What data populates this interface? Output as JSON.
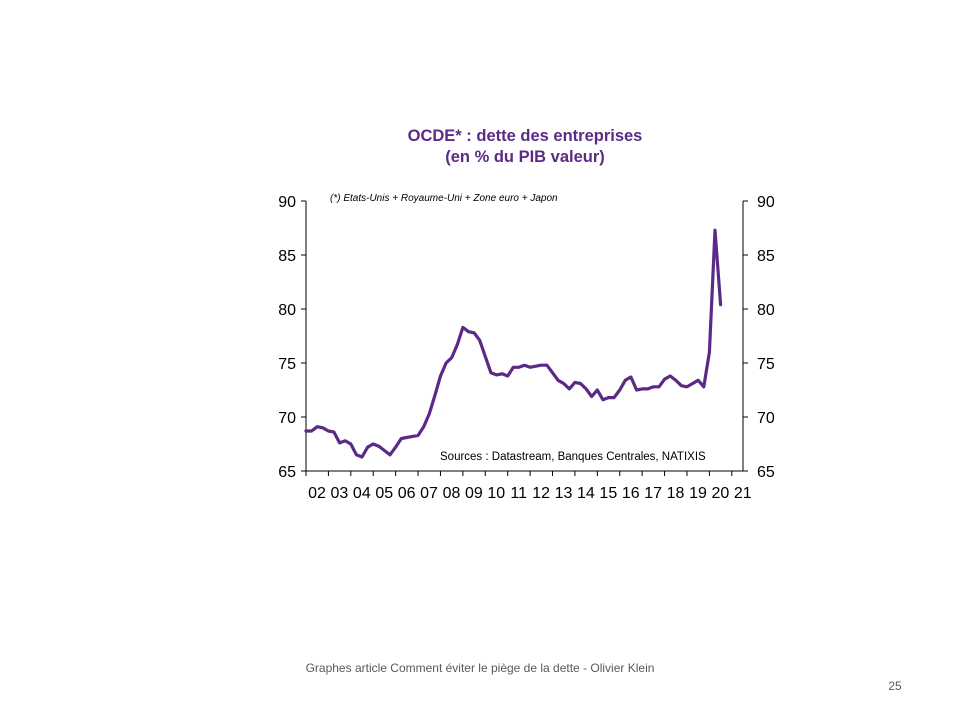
{
  "chart_data": {
    "type": "line",
    "title_lines": [
      "OCDE* : dette des entreprises",
      "(en % du PIB valeur)"
    ],
    "note": "(*) Etats-Unis + Royaume-Uni + Zone euro + Japon",
    "source": "Sources : Datastream, Banques Centrales, NATIXIS",
    "categories": [
      "02",
      "03",
      "04",
      "05",
      "06",
      "07",
      "08",
      "09",
      "10",
      "11",
      "12",
      "13",
      "14",
      "15",
      "16",
      "17",
      "18",
      "19",
      "20",
      "21"
    ],
    "y_ticks": [
      "90",
      "85",
      "80",
      "75",
      "70",
      "65"
    ],
    "ylim": [
      65,
      90
    ],
    "xlim": [
      2002,
      2021.5
    ],
    "color": "#5b2a86",
    "series": [
      {
        "x": [
          2002.0,
          2002.25,
          2002.5,
          2002.75,
          2003.0,
          2003.25,
          2003.5,
          2003.75,
          2004.0,
          2004.25,
          2004.5,
          2004.75,
          2005.0,
          2005.25,
          2005.5,
          2005.75,
          2006.0,
          2006.25,
          2006.5,
          2006.75,
          2007.0,
          2007.25,
          2007.5,
          2007.75,
          2008.0,
          2008.25,
          2008.5,
          2008.75,
          2009.0,
          2009.25,
          2009.5,
          2009.75,
          2010.0,
          2010.25,
          2010.5,
          2010.75,
          2011.0,
          2011.25,
          2011.5,
          2011.75,
          2012.0,
          2012.25,
          2012.5,
          2012.75,
          2013.0,
          2013.25,
          2013.5,
          2013.75,
          2014.0,
          2014.25,
          2014.5,
          2014.75,
          2015.0,
          2015.25,
          2015.5,
          2015.75,
          2016.0,
          2016.25,
          2016.5,
          2016.75,
          2017.0,
          2017.25,
          2017.5,
          2017.75,
          2018.0,
          2018.25,
          2018.5,
          2018.75,
          2019.0,
          2019.25,
          2019.5,
          2019.75,
          2020.0,
          2020.25,
          2020.5
        ],
        "y": [
          68.7,
          68.7,
          69.1,
          69.0,
          68.7,
          68.6,
          67.6,
          67.8,
          67.5,
          66.5,
          66.3,
          67.2,
          67.5,
          67.3,
          66.9,
          66.5,
          67.2,
          68.0,
          68.1,
          68.2,
          68.3,
          69.1,
          70.3,
          72.0,
          73.8,
          75.0,
          75.5,
          76.7,
          78.3,
          77.9,
          77.8,
          77.1,
          75.6,
          74.1,
          73.9,
          74.0,
          73.8,
          74.6,
          74.6,
          74.8,
          74.6,
          74.7,
          74.8,
          74.8,
          74.1,
          73.4,
          73.1,
          72.6,
          73.2,
          73.1,
          72.6,
          71.9,
          72.5,
          71.6,
          71.8,
          71.8,
          72.5,
          73.4,
          73.7,
          72.5,
          72.6,
          72.6,
          72.8,
          72.8,
          73.5,
          73.8,
          73.4,
          72.9,
          72.8,
          73.1,
          73.4,
          72.8,
          76.0,
          87.3,
          80.4
        ]
      }
    ]
  },
  "footer": "Graphes article Comment  éviter le piège de la dette - Olivier Klein",
  "page_number": "25"
}
